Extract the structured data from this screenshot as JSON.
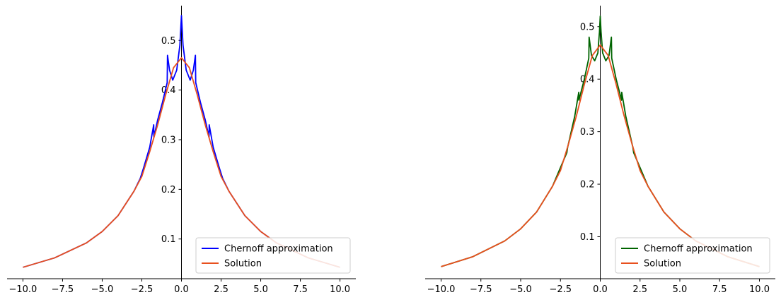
{
  "chart_data": [
    {
      "type": "line",
      "title": "",
      "xlabel": "",
      "ylabel": "",
      "xlim": [
        -11,
        11
      ],
      "ylim": [
        0.02,
        0.57
      ],
      "x_ticks": [
        -10.0,
        -7.5,
        -5.0,
        -2.5,
        0.0,
        2.5,
        5.0,
        7.5,
        10.0
      ],
      "x_tick_labels": [
        "−10.0",
        "−7.5",
        "−5.0",
        "−2.5",
        "0.0",
        "2.5",
        "5.0",
        "7.5",
        "10.0"
      ],
      "y_ticks": [
        0.1,
        0.2,
        0.3,
        0.4,
        0.5
      ],
      "y_tick_labels": [
        "0.1",
        "0.2",
        "0.3",
        "0.4",
        "0.5"
      ],
      "spines": "centered",
      "grid": false,
      "legend_position": "lower-right",
      "series": [
        {
          "name": "Chernoff approximation",
          "color": "#0000ff",
          "x": [
            -10,
            -8,
            -6,
            -5,
            -4,
            -3,
            -2.6,
            -2.4,
            -2.0,
            -1.75,
            -1.74,
            -1.5,
            -1.2,
            -0.9,
            -0.88,
            -0.75,
            -0.55,
            -0.3,
            -0.1,
            0.0,
            0.1,
            0.3,
            0.55,
            0.75,
            0.88,
            0.9,
            1.2,
            1.5,
            1.74,
            1.75,
            2.0,
            2.4,
            2.6,
            3,
            4,
            5,
            6,
            8,
            10
          ],
          "y": [
            0.043,
            0.062,
            0.092,
            0.115,
            0.147,
            0.196,
            0.222,
            0.242,
            0.285,
            0.33,
            0.305,
            0.34,
            0.375,
            0.415,
            0.47,
            0.44,
            0.42,
            0.44,
            0.49,
            0.55,
            0.49,
            0.44,
            0.42,
            0.44,
            0.47,
            0.415,
            0.375,
            0.34,
            0.305,
            0.33,
            0.285,
            0.242,
            0.222,
            0.196,
            0.147,
            0.115,
            0.092,
            0.062,
            0.043
          ]
        },
        {
          "name": "Solution",
          "color": "#e8501e",
          "x": [
            -10,
            -8,
            -6,
            -5,
            -4,
            -3,
            -2.5,
            -2,
            -1.5,
            -1,
            -0.5,
            0,
            0.5,
            1,
            1.5,
            2,
            2.5,
            3,
            4,
            5,
            6,
            8,
            10
          ],
          "y": [
            0.043,
            0.062,
            0.092,
            0.115,
            0.147,
            0.196,
            0.226,
            0.276,
            0.33,
            0.39,
            0.445,
            0.465,
            0.445,
            0.39,
            0.33,
            0.276,
            0.226,
            0.196,
            0.147,
            0.115,
            0.092,
            0.062,
            0.043
          ]
        }
      ]
    },
    {
      "type": "line",
      "title": "",
      "xlabel": "",
      "ylabel": "",
      "xlim": [
        -11,
        11
      ],
      "ylim": [
        0.02,
        0.54
      ],
      "x_ticks": [
        -10.0,
        -7.5,
        -5.0,
        -2.5,
        0.0,
        2.5,
        5.0,
        7.5,
        10.0
      ],
      "x_tick_labels": [
        "−10.0",
        "−7.5",
        "−5.0",
        "−2.5",
        "0.0",
        "2.5",
        "5.0",
        "7.5",
        "10.0"
      ],
      "y_ticks": [
        0.1,
        0.2,
        0.3,
        0.4,
        0.5
      ],
      "y_tick_labels": [
        "0.1",
        "0.2",
        "0.3",
        "0.4",
        "0.5"
      ],
      "spines": "centered",
      "grid": false,
      "legend_position": "lower-right",
      "series": [
        {
          "name": "Chernoff approximation",
          "color": "#006400",
          "x": [
            -10,
            -8,
            -6,
            -5,
            -4,
            -3,
            -2.1,
            -2.05,
            -1.6,
            -1.35,
            -1.34,
            -1.0,
            -0.72,
            -0.7,
            -0.55,
            -0.35,
            -0.15,
            -0.05,
            0.0,
            0.05,
            0.15,
            0.35,
            0.55,
            0.7,
            0.72,
            1.0,
            1.34,
            1.35,
            1.6,
            2.05,
            2.1,
            3,
            4,
            5,
            6,
            8,
            10
          ],
          "y": [
            0.043,
            0.062,
            0.092,
            0.115,
            0.147,
            0.196,
            0.26,
            0.27,
            0.33,
            0.375,
            0.36,
            0.4,
            0.44,
            0.48,
            0.445,
            0.435,
            0.45,
            0.49,
            0.52,
            0.49,
            0.45,
            0.435,
            0.445,
            0.48,
            0.44,
            0.4,
            0.36,
            0.375,
            0.33,
            0.27,
            0.26,
            0.196,
            0.147,
            0.115,
            0.092,
            0.062,
            0.043
          ]
        },
        {
          "name": "Solution",
          "color": "#e8501e",
          "x": [
            -10,
            -8,
            -6,
            -5,
            -4,
            -3,
            -2.5,
            -2,
            -1.5,
            -1,
            -0.5,
            0,
            0.5,
            1,
            1.5,
            2,
            2.5,
            3,
            4,
            5,
            6,
            8,
            10
          ],
          "y": [
            0.043,
            0.062,
            0.092,
            0.115,
            0.147,
            0.196,
            0.226,
            0.276,
            0.33,
            0.39,
            0.445,
            0.465,
            0.445,
            0.39,
            0.33,
            0.276,
            0.226,
            0.196,
            0.147,
            0.115,
            0.092,
            0.062,
            0.043
          ]
        }
      ]
    }
  ]
}
